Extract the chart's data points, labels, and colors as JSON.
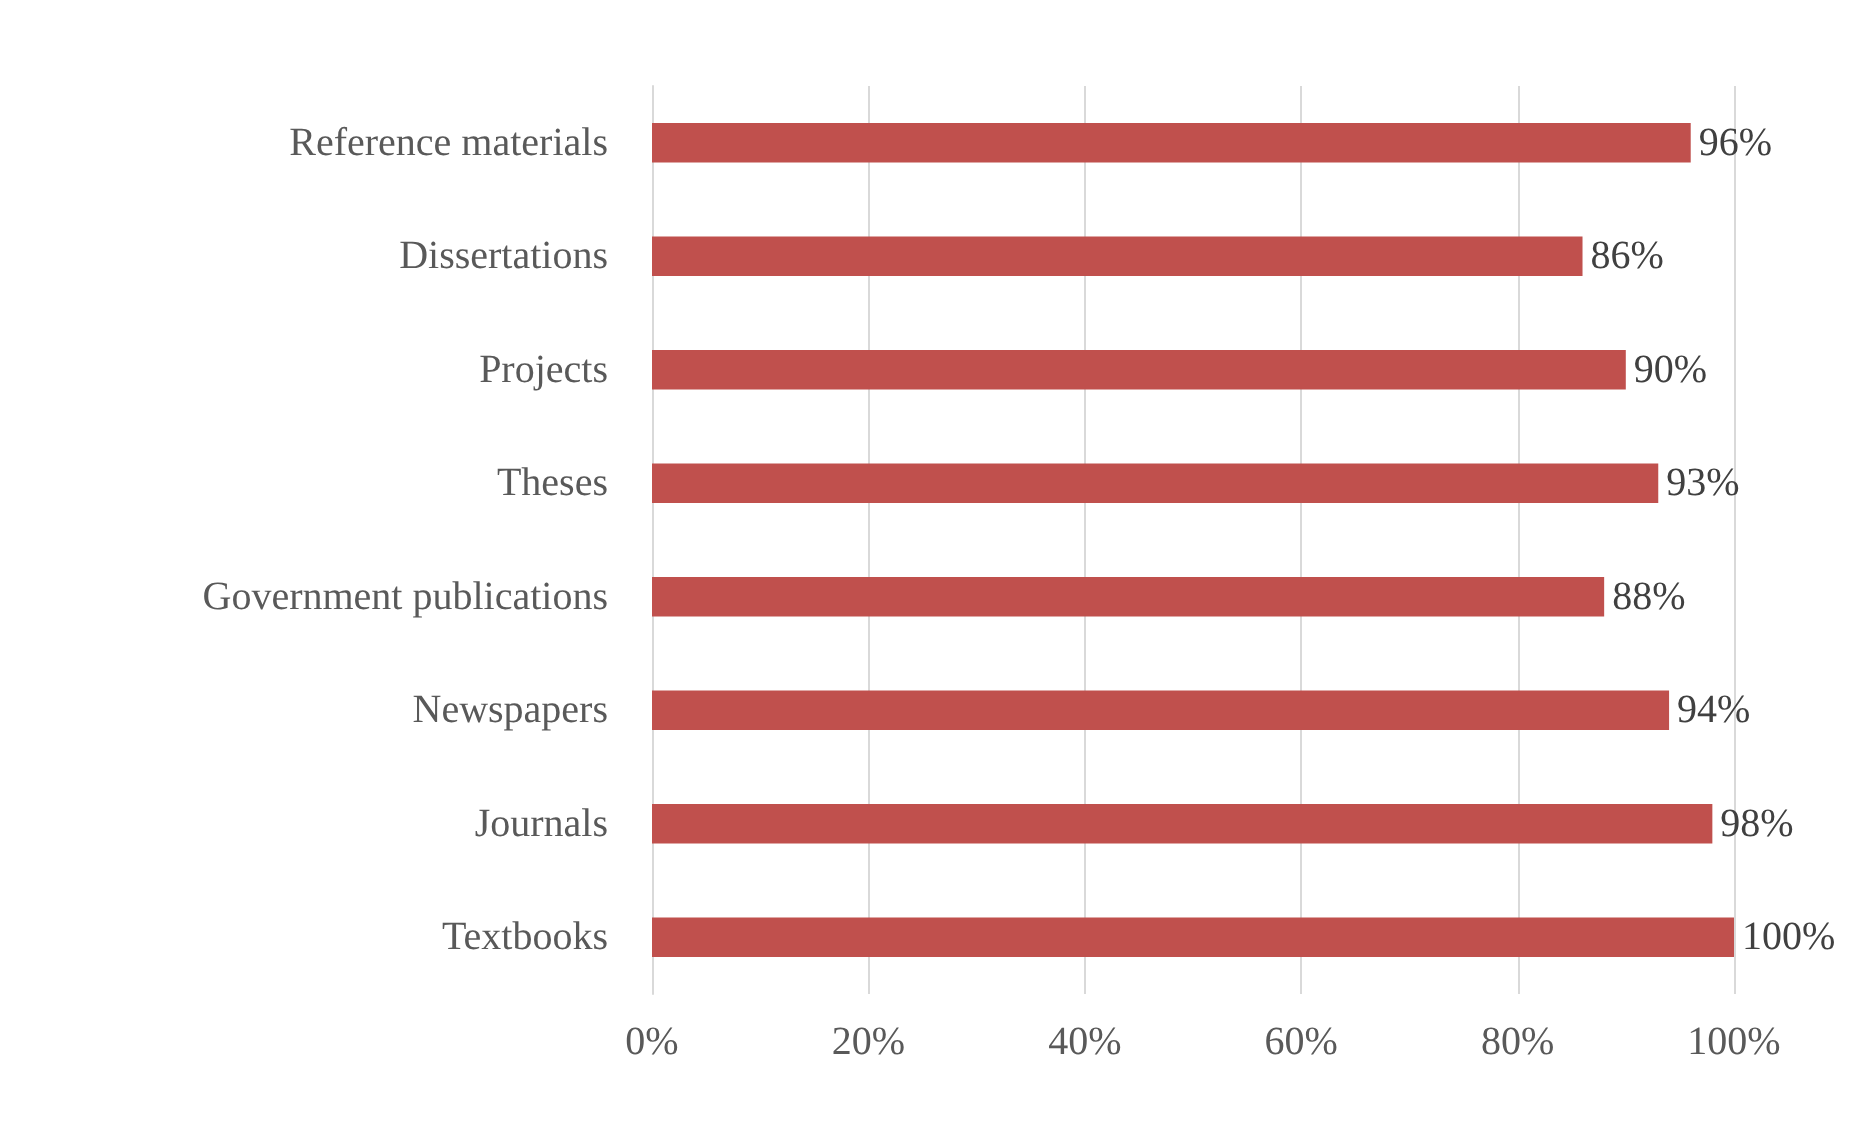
{
  "chart_data": {
    "type": "bar",
    "orientation": "horizontal",
    "categories": [
      "Reference materials",
      "Dissertations",
      "Projects",
      "Theses",
      "Government publications",
      "Newspapers",
      "Journals",
      "Textbooks"
    ],
    "values": [
      96,
      86,
      90,
      93,
      88,
      94,
      98,
      100
    ],
    "value_labels": [
      "96%",
      "86%",
      "90%",
      "93%",
      "88%",
      "94%",
      "98%",
      "100%"
    ],
    "color": "#c0504d",
    "xlim": [
      0,
      100
    ],
    "xticks": [
      {
        "value": 0,
        "label": "0%"
      },
      {
        "value": 20,
        "label": "20%"
      },
      {
        "value": 40,
        "label": "40%"
      },
      {
        "value": 60,
        "label": "60%"
      },
      {
        "value": 80,
        "label": "80%"
      },
      {
        "value": 100,
        "label": "100%"
      }
    ],
    "grid": "x"
  }
}
